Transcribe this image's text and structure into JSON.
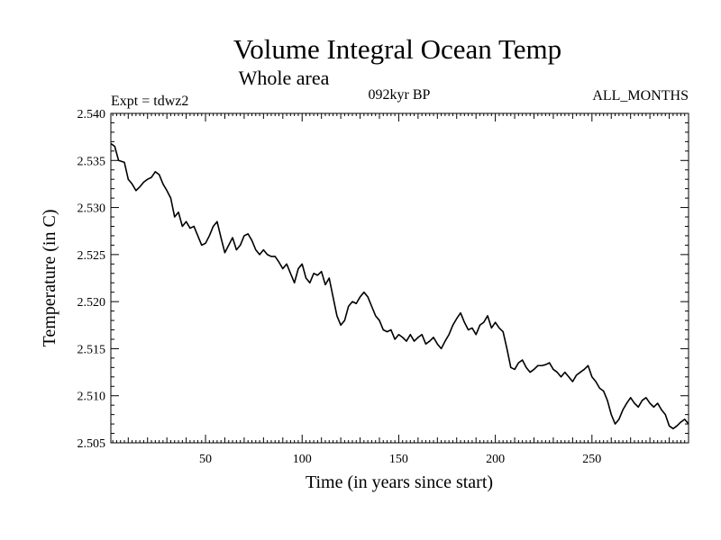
{
  "chart_data": {
    "type": "line",
    "title": "Volume Integral Ocean Temp",
    "subtitle": "Whole area",
    "annotations": {
      "expt": "Expt = tdwz2",
      "period": "092kyr BP",
      "months": "ALL_MONTHS"
    },
    "xlabel": "Time (in years since start)",
    "ylabel": "Temperature (in C)",
    "xlim": [
      1,
      300
    ],
    "ylim": [
      2.505,
      2.54
    ],
    "x_ticks": [
      50,
      100,
      150,
      200,
      250
    ],
    "y_ticks": [
      "2.505",
      "2.510",
      "2.515",
      "2.520",
      "2.525",
      "2.530",
      "2.535",
      "2.540"
    ],
    "grid": false,
    "series": [
      {
        "color": "#000000",
        "points": [
          [
            1,
            2.5368
          ],
          [
            3,
            2.5365
          ],
          [
            5,
            2.535
          ],
          [
            8,
            2.5348
          ],
          [
            10,
            2.533
          ],
          [
            12,
            2.5325
          ],
          [
            14,
            2.5318
          ],
          [
            16,
            2.5322
          ],
          [
            18,
            2.5327
          ],
          [
            20,
            2.533
          ],
          [
            22,
            2.5332
          ],
          [
            24,
            2.5338
          ],
          [
            26,
            2.5335
          ],
          [
            28,
            2.5325
          ],
          [
            30,
            2.5318
          ],
          [
            32,
            2.531
          ],
          [
            34,
            2.529
          ],
          [
            36,
            2.5295
          ],
          [
            38,
            2.528
          ],
          [
            40,
            2.5285
          ],
          [
            42,
            2.5278
          ],
          [
            44,
            2.528
          ],
          [
            46,
            2.527
          ],
          [
            48,
            2.526
          ],
          [
            50,
            2.5262
          ],
          [
            52,
            2.527
          ],
          [
            54,
            2.528
          ],
          [
            56,
            2.5285
          ],
          [
            58,
            2.5268
          ],
          [
            60,
            2.5252
          ],
          [
            62,
            2.526
          ],
          [
            64,
            2.5268
          ],
          [
            66,
            2.5255
          ],
          [
            68,
            2.526
          ],
          [
            70,
            2.527
          ],
          [
            72,
            2.5272
          ],
          [
            74,
            2.5265
          ],
          [
            76,
            2.5255
          ],
          [
            78,
            2.525
          ],
          [
            80,
            2.5255
          ],
          [
            82,
            2.525
          ],
          [
            84,
            2.5248
          ],
          [
            86,
            2.5248
          ],
          [
            88,
            2.5242
          ],
          [
            90,
            2.5235
          ],
          [
            92,
            2.524
          ],
          [
            94,
            2.523
          ],
          [
            96,
            2.522
          ],
          [
            98,
            2.5235
          ],
          [
            100,
            2.524
          ],
          [
            102,
            2.5225
          ],
          [
            104,
            2.522
          ],
          [
            106,
            2.523
          ],
          [
            108,
            2.5228
          ],
          [
            110,
            2.5232
          ],
          [
            112,
            2.5218
          ],
          [
            114,
            2.5225
          ],
          [
            116,
            2.5205
          ],
          [
            118,
            2.5185
          ],
          [
            120,
            2.5175
          ],
          [
            122,
            2.518
          ],
          [
            124,
            2.5195
          ],
          [
            126,
            2.52
          ],
          [
            128,
            2.5198
          ],
          [
            130,
            2.5205
          ],
          [
            132,
            2.521
          ],
          [
            134,
            2.5205
          ],
          [
            136,
            2.5195
          ],
          [
            138,
            2.5185
          ],
          [
            140,
            2.518
          ],
          [
            142,
            2.517
          ],
          [
            144,
            2.5168
          ],
          [
            146,
            2.517
          ],
          [
            148,
            2.516
          ],
          [
            150,
            2.5165
          ],
          [
            152,
            2.5162
          ],
          [
            154,
            2.5158
          ],
          [
            156,
            2.5165
          ],
          [
            158,
            2.5158
          ],
          [
            160,
            2.5162
          ],
          [
            162,
            2.5165
          ],
          [
            164,
            2.5155
          ],
          [
            166,
            2.5158
          ],
          [
            168,
            2.5162
          ],
          [
            170,
            2.5155
          ],
          [
            172,
            2.515
          ],
          [
            174,
            2.5158
          ],
          [
            176,
            2.5165
          ],
          [
            178,
            2.5175
          ],
          [
            180,
            2.5182
          ],
          [
            182,
            2.5188
          ],
          [
            184,
            2.5178
          ],
          [
            186,
            2.517
          ],
          [
            188,
            2.5172
          ],
          [
            190,
            2.5165
          ],
          [
            192,
            2.5175
          ],
          [
            194,
            2.5178
          ],
          [
            196,
            2.5185
          ],
          [
            198,
            2.5172
          ],
          [
            200,
            2.5178
          ],
          [
            202,
            2.5172
          ],
          [
            204,
            2.5168
          ],
          [
            206,
            2.515
          ],
          [
            208,
            2.513
          ],
          [
            210,
            2.5128
          ],
          [
            212,
            2.5135
          ],
          [
            214,
            2.5138
          ],
          [
            216,
            2.513
          ],
          [
            218,
            2.5125
          ],
          [
            220,
            2.5128
          ],
          [
            222,
            2.5132
          ],
          [
            224,
            2.5132
          ],
          [
            226,
            2.5133
          ],
          [
            228,
            2.5135
          ],
          [
            230,
            2.5128
          ],
          [
            232,
            2.5125
          ],
          [
            234,
            2.512
          ],
          [
            236,
            2.5125
          ],
          [
            238,
            2.512
          ],
          [
            240,
            2.5115
          ],
          [
            242,
            2.5122
          ],
          [
            244,
            2.5125
          ],
          [
            246,
            2.5128
          ],
          [
            248,
            2.5132
          ],
          [
            250,
            2.512
          ],
          [
            252,
            2.5115
          ],
          [
            254,
            2.5108
          ],
          [
            256,
            2.5105
          ],
          [
            258,
            2.5095
          ],
          [
            260,
            2.508
          ],
          [
            262,
            2.507
          ],
          [
            264,
            2.5075
          ],
          [
            266,
            2.5085
          ],
          [
            268,
            2.5092
          ],
          [
            270,
            2.5098
          ],
          [
            272,
            2.5092
          ],
          [
            274,
            2.5088
          ],
          [
            276,
            2.5095
          ],
          [
            278,
            2.5098
          ],
          [
            280,
            2.5092
          ],
          [
            282,
            2.5088
          ],
          [
            284,
            2.5092
          ],
          [
            286,
            2.5085
          ],
          [
            288,
            2.508
          ],
          [
            290,
            2.5068
          ],
          [
            292,
            2.5065
          ],
          [
            294,
            2.5068
          ],
          [
            296,
            2.5072
          ],
          [
            298,
            2.5075
          ],
          [
            300,
            2.507
          ]
        ]
      }
    ]
  }
}
